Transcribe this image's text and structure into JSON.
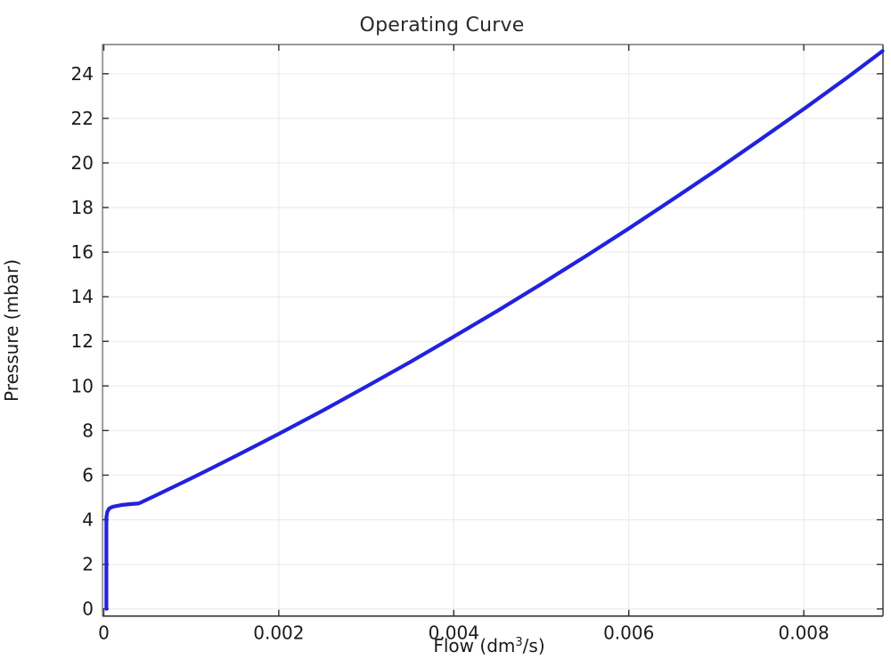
{
  "chart_data": {
    "type": "line",
    "title": "Operating Curve",
    "xlabel": {
      "prefix": "Flow (dm",
      "sup": "3",
      "suffix": "/s)",
      "full": "Flow (dm^3/s)"
    },
    "ylabel": "Pressure (mbar)",
    "x_ticks": {
      "values": [
        0,
        0.002,
        0.004,
        0.006,
        0.008
      ],
      "labels": [
        "0",
        "0.002",
        "0.004",
        "0.006",
        "0.008"
      ]
    },
    "y_ticks": {
      "values": [
        0,
        2,
        4,
        6,
        8,
        10,
        12,
        14,
        16,
        18,
        20,
        22,
        24
      ],
      "labels": [
        "0",
        "2",
        "4",
        "6",
        "8",
        "10",
        "12",
        "14",
        "16",
        "18",
        "20",
        "22",
        "24"
      ]
    },
    "xlim": [
      -1.5e-05,
      0.008905
    ],
    "ylim": [
      -0.32,
      25.31
    ],
    "grid": true,
    "legend": "none",
    "series": [
      {
        "name": "Operating curve",
        "color": "#2222DD",
        "line_width": 4.2,
        "x": [
          3e-05,
          3e-05,
          4e-05,
          6e-05,
          0.0001,
          0.0002,
          0.0003,
          0.0004,
          0.0006,
          0.0008,
          0.001,
          0.0012,
          0.0015,
          0.002,
          0.0025,
          0.003,
          0.0035,
          0.004,
          0.0045,
          0.005,
          0.0055,
          0.006,
          0.0065,
          0.007,
          0.0075,
          0.008,
          0.0085,
          0.0089
        ],
        "y": [
          0,
          4.1,
          4.35,
          4.5,
          4.58,
          4.66,
          4.7,
          4.73,
          5.1,
          5.48,
          5.86,
          6.25,
          6.84,
          7.85,
          8.89,
          9.97,
          11.07,
          12.21,
          13.37,
          14.57,
          15.8,
          17.06,
          18.36,
          19.68,
          21.04,
          22.42,
          23.84,
          25.02
        ]
      }
    ],
    "colors": {
      "background": "#ffffff",
      "grid": "#ececec",
      "frame_top": "#9a9a9a",
      "frame_left": "#808080",
      "frame_bottom": "#2f2f2f",
      "frame_right": "#4a4a4a",
      "tick": "#2f2f2f",
      "tick_text": "#1a1a1a",
      "title_text": "#2a2a2a"
    }
  }
}
